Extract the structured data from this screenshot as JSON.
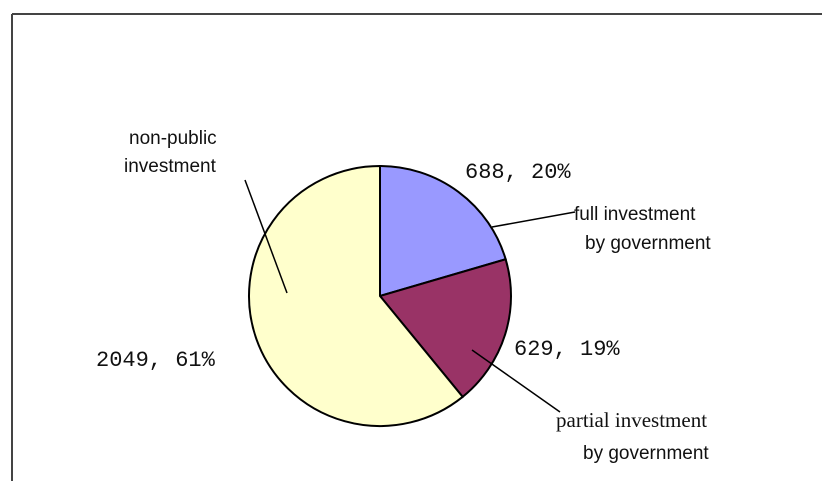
{
  "chart_data": {
    "type": "pie",
    "start_angle_deg": 0,
    "direction": "clockwise",
    "slices": [
      {
        "label_lines": [
          "full investment",
          "by government"
        ],
        "value": 688,
        "percent": 20,
        "value_label": "688,  20%",
        "color": "#9999ff"
      },
      {
        "label_lines": [
          "partial investment",
          "by government"
        ],
        "value": 629,
        "percent": 19,
        "value_label": "629,  19%",
        "color": "#993366"
      },
      {
        "label_lines": [
          "non-public",
          "investment"
        ],
        "value": 2049,
        "percent": 61,
        "value_label": "2049,  61%",
        "color": "#ffffcc"
      }
    ],
    "legend": "none",
    "edge_color": "#000000"
  }
}
